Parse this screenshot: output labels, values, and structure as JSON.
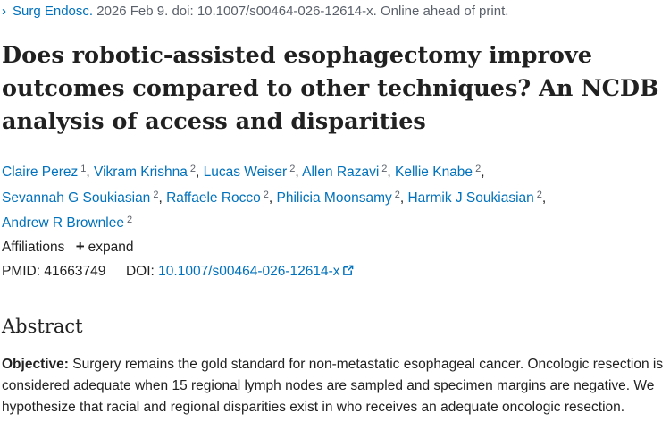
{
  "citation": {
    "journal": "Surg Endosc.",
    "details": "2026 Feb 9. doi: 10.1007/s00464-026-12614-x. Online ahead of print."
  },
  "title": "Does robotic-assisted esophagectomy improve outcomes compared to other techniques? An NCDB analysis of access and disparities",
  "authors": [
    {
      "name": "Claire Perez",
      "sup": "1"
    },
    {
      "name": "Vikram Krishna",
      "sup": "2"
    },
    {
      "name": "Lucas Weiser",
      "sup": "2"
    },
    {
      "name": "Allen Razavi",
      "sup": "2"
    },
    {
      "name": "Kellie Knabe",
      "sup": "2"
    },
    {
      "name": "Sevannah G Soukiasian",
      "sup": "2"
    },
    {
      "name": "Raffaele Rocco",
      "sup": "2"
    },
    {
      "name": "Philicia Moonsamy",
      "sup": "2"
    },
    {
      "name": "Harmik J Soukiasian",
      "sup": "2"
    },
    {
      "name": "Andrew R Brownlee",
      "sup": "2"
    }
  ],
  "affiliations": {
    "label": "Affiliations",
    "expand_label": "expand"
  },
  "ids": {
    "pmid_label": "PMID:",
    "pmid": "41663749",
    "doi_label": "DOI:",
    "doi": "10.1007/s00464-026-12614-x"
  },
  "abstract": {
    "heading": "Abstract",
    "objective_label": "Objective:",
    "objective_text": "Surgery remains the gold standard for non-metastatic esophageal cancer. Oncologic resection is considered adequate when 15 regional lymph nodes are sampled and specimen margins are negative. We hypothesize that racial and regional disparities exist in who receives an adequate oncologic resection."
  },
  "colors": {
    "link": "#0071bc",
    "text": "#212121",
    "muted": "#5b616b"
  }
}
